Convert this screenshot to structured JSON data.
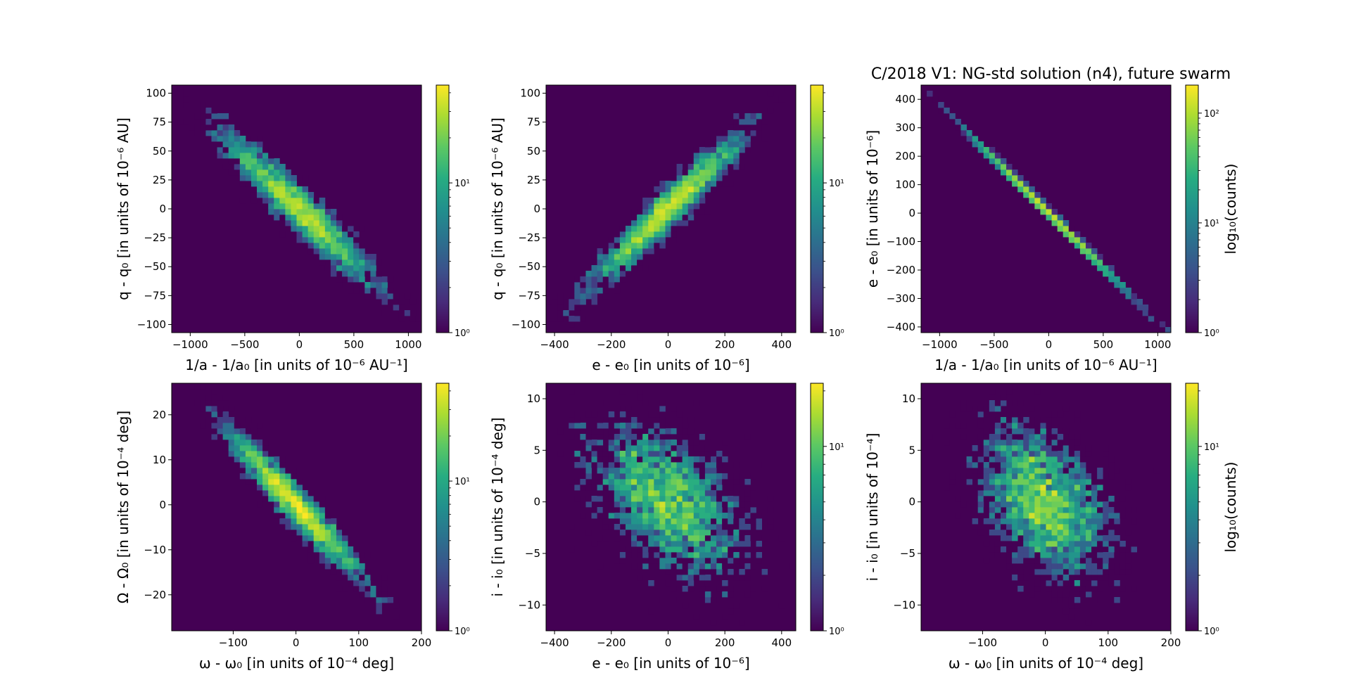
{
  "chart_data": [
    {
      "type": "heatmap",
      "title": "",
      "xlabel": "1/a - 1/a₀ [in units of 10⁻⁶ AU⁻¹]",
      "ylabel": "q - q₀ [in units of 10⁻⁶ AU]",
      "xlim": [
        -1170,
        1120
      ],
      "ylim": [
        -107,
        107
      ],
      "xticks": [
        -1000,
        -500,
        0,
        500,
        1000
      ],
      "xticklabels": [
        "−1000",
        "−500",
        "0",
        "500",
        "1000"
      ],
      "yticks": [
        -100,
        -75,
        -50,
        -25,
        0,
        25,
        50,
        75,
        100
      ],
      "yticklabels": [
        "−100",
        "−75",
        "−50",
        "−25",
        "0",
        "25",
        "50",
        "75",
        "100"
      ],
      "distribution": {
        "center": [
          0,
          0
        ],
        "spread_x": 340,
        "spread_y": 32,
        "correlation": -0.95,
        "points": 2600
      },
      "colorbar": {
        "scale": "log",
        "min": 1,
        "max": 45,
        "ticklabels": [
          "10⁰",
          "10¹"
        ],
        "label": ""
      }
    },
    {
      "type": "heatmap",
      "title": "",
      "xlabel": "e - e₀ [in units of 10⁻⁶]",
      "ylabel": "q - q₀ [in units of 10⁻⁶ AU]",
      "xlim": [
        -430,
        450
      ],
      "ylim": [
        -107,
        107
      ],
      "xticks": [
        -400,
        -200,
        0,
        200,
        400
      ],
      "xticklabels": [
        "−400",
        "−200",
        "0",
        "200",
        "400"
      ],
      "yticks": [
        -100,
        -75,
        -50,
        -25,
        0,
        25,
        50,
        75,
        100
      ],
      "yticklabels": [
        "−100",
        "−75",
        "−50",
        "−25",
        "0",
        "25",
        "50",
        "75",
        "100"
      ],
      "distribution": {
        "center": [
          0,
          0
        ],
        "spread_x": 130,
        "spread_y": 32,
        "correlation": 0.96,
        "points": 2600
      },
      "colorbar": {
        "scale": "log",
        "min": 1,
        "max": 45,
        "ticklabels": [
          "10⁰",
          "10¹"
        ],
        "label": ""
      }
    },
    {
      "type": "heatmap",
      "title": "C/2018 V1: NG-std solution (n4), future swarm",
      "xlabel": "1/a - 1/a₀ [in units of 10⁻⁶ AU⁻¹]",
      "ylabel": "e - e₀ [in units of 10⁻⁶]",
      "xlim": [
        -1170,
        1120
      ],
      "ylim": [
        -420,
        450
      ],
      "xticks": [
        -1000,
        -500,
        0,
        500,
        1000
      ],
      "xticklabels": [
        "−1000",
        "−500",
        "0",
        "500",
        "1000"
      ],
      "yticks": [
        -400,
        -300,
        -200,
        -100,
        0,
        100,
        200,
        300,
        400
      ],
      "yticklabels": [
        "−400",
        "−300",
        "−200",
        "−100",
        "0",
        "100",
        "200",
        "300",
        "400"
      ],
      "distribution": {
        "center": [
          0,
          0
        ],
        "spread_x": 340,
        "spread_y": 130,
        "correlation": -0.999,
        "points": 2600
      },
      "colorbar": {
        "scale": "log",
        "min": 1,
        "max": 180,
        "ticklabels": [
          "10⁰",
          "10¹",
          "10²"
        ],
        "label": "log₁₀(counts)"
      }
    },
    {
      "type": "heatmap",
      "title": "",
      "xlabel": "ω - ω₀ [in units of 10⁻⁴ deg]",
      "ylabel": "Ω - Ω₀ [in units of 10⁻⁴ deg]",
      "xlim": [
        -198,
        200
      ],
      "ylim": [
        -28,
        27
      ],
      "xticks": [
        -100,
        0,
        100,
        200
      ],
      "xticklabels": [
        "−100",
        "0",
        "100",
        "200"
      ],
      "yticks": [
        -20,
        -10,
        0,
        10,
        20
      ],
      "yticklabels": [
        "−20",
        "−10",
        "0",
        "10",
        "20"
      ],
      "distribution": {
        "center": [
          0,
          0
        ],
        "spread_x": 52,
        "spread_y": 8,
        "correlation": -0.96,
        "points": 2600
      },
      "colorbar": {
        "scale": "log",
        "min": 1,
        "max": 45,
        "ticklabels": [
          "10⁰",
          "10¹"
        ],
        "label": ""
      }
    },
    {
      "type": "heatmap",
      "title": "",
      "xlabel": "e - e₀ [in units of 10⁻⁶]",
      "ylabel": "i - i₀ [in units of 10⁻⁴ deg]",
      "xlim": [
        -430,
        450
      ],
      "ylim": [
        -12.5,
        11.5
      ],
      "xticks": [
        -400,
        -200,
        0,
        200,
        400
      ],
      "xticklabels": [
        "−400",
        "−200",
        "0",
        "200",
        "400"
      ],
      "yticks": [
        -10,
        -5,
        0,
        5,
        10
      ],
      "yticklabels": [
        "−10",
        "−5",
        "0",
        "5",
        "10"
      ],
      "distribution": {
        "center": [
          0,
          0
        ],
        "spread_x": 130,
        "spread_y": 3.6,
        "correlation": -0.45,
        "points": 2600
      },
      "colorbar": {
        "scale": "log",
        "min": 1,
        "max": 22,
        "ticklabels": [
          "10⁰",
          "10¹"
        ],
        "label": ""
      }
    },
    {
      "type": "heatmap",
      "title": "",
      "xlabel": "ω - ω₀ [in units of 10⁻⁴ deg]",
      "ylabel": "i - i₀ [in units of 10⁻⁴]",
      "xlim": [
        -198,
        200
      ],
      "ylim": [
        -12.5,
        11.5
      ],
      "xticks": [
        -100,
        0,
        100,
        200
      ],
      "xticklabels": [
        "−100",
        "0",
        "100",
        "200"
      ],
      "yticks": [
        -10,
        -5,
        0,
        5,
        10
      ],
      "yticklabels": [
        "−10",
        "−5",
        "0",
        "5",
        "10"
      ],
      "distribution": {
        "center": [
          0,
          0
        ],
        "spread_x": 52,
        "spread_y": 3.6,
        "correlation": -0.4,
        "points": 2600
      },
      "colorbar": {
        "scale": "log",
        "min": 1,
        "max": 22,
        "ticklabels": [
          "10⁰",
          "10¹"
        ],
        "label": "log₁₀(counts)"
      }
    }
  ]
}
